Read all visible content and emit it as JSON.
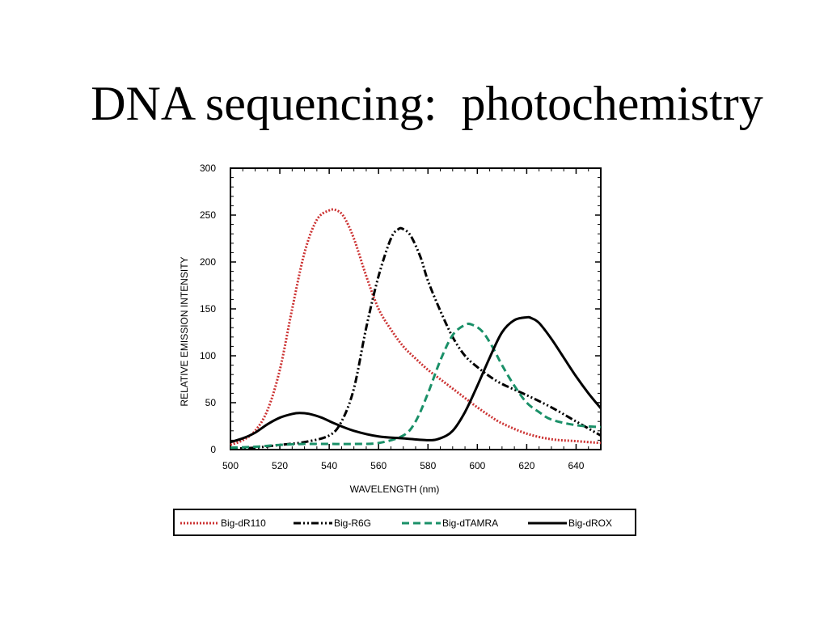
{
  "slide": {
    "title": "DNA sequencing:  photochemistry"
  },
  "chart_data": {
    "type": "line",
    "title": "",
    "xlabel": "WAVELENGTH (nm)",
    "ylabel": "RELATIVE EMISSION INTENSITY",
    "xlim": [
      500,
      650
    ],
    "ylim": [
      0,
      300
    ],
    "x_ticks": [
      500,
      520,
      540,
      560,
      580,
      600,
      620,
      640
    ],
    "y_ticks": [
      0,
      50,
      100,
      150,
      200,
      250,
      300
    ],
    "grid": false,
    "legend_position": "bottom",
    "series": [
      {
        "name": "Big-dR110",
        "color": "#cc3333",
        "dash": "dotted",
        "x": [
          500,
          505,
          510,
          515,
          520,
          525,
          530,
          535,
          540,
          543,
          546,
          550,
          555,
          560,
          565,
          570,
          575,
          580,
          585,
          590,
          595,
          600,
          605,
          610,
          620,
          630,
          640,
          650
        ],
        "y": [
          5,
          10,
          20,
          42,
          85,
          150,
          210,
          245,
          255,
          255,
          248,
          225,
          185,
          150,
          128,
          110,
          97,
          85,
          75,
          65,
          55,
          45,
          36,
          28,
          17,
          11,
          9,
          7
        ]
      },
      {
        "name": "Big-R6G",
        "color": "#000000",
        "dash": "dashdot",
        "x": [
          500,
          510,
          520,
          530,
          540,
          545,
          550,
          555,
          560,
          565,
          568,
          570,
          573,
          577,
          580,
          585,
          590,
          595,
          600,
          605,
          610,
          620,
          630,
          640,
          650
        ],
        "y": [
          1,
          2,
          5,
          8,
          15,
          30,
          65,
          130,
          185,
          225,
          235,
          235,
          228,
          205,
          180,
          148,
          120,
          100,
          88,
          78,
          70,
          58,
          45,
          30,
          15
        ]
      },
      {
        "name": "Big-dTAMRA",
        "color": "#1a9068",
        "dash": "dashed",
        "x": [
          500,
          510,
          520,
          530,
          540,
          550,
          560,
          570,
          575,
          580,
          585,
          590,
          595,
          598,
          602,
          606,
          610,
          615,
          620,
          625,
          630,
          640,
          650
        ],
        "y": [
          2,
          3,
          5,
          6,
          6,
          6,
          7,
          15,
          30,
          60,
          95,
          122,
          133,
          133,
          126,
          110,
          90,
          68,
          50,
          40,
          32,
          26,
          24
        ]
      },
      {
        "name": "Big-dROX",
        "color": "#000000",
        "dash": "solid",
        "x": [
          500,
          505,
          510,
          515,
          520,
          525,
          528,
          532,
          537,
          542,
          550,
          560,
          570,
          580,
          585,
          590,
          595,
          600,
          605,
          610,
          615,
          620,
          622,
          625,
          630,
          635,
          640,
          645,
          650
        ],
        "y": [
          8,
          12,
          18,
          27,
          34,
          38,
          39,
          38,
          34,
          28,
          20,
          14,
          12,
          10,
          12,
          20,
          40,
          68,
          98,
          125,
          138,
          141,
          140,
          135,
          118,
          98,
          78,
          60,
          44
        ]
      }
    ]
  }
}
